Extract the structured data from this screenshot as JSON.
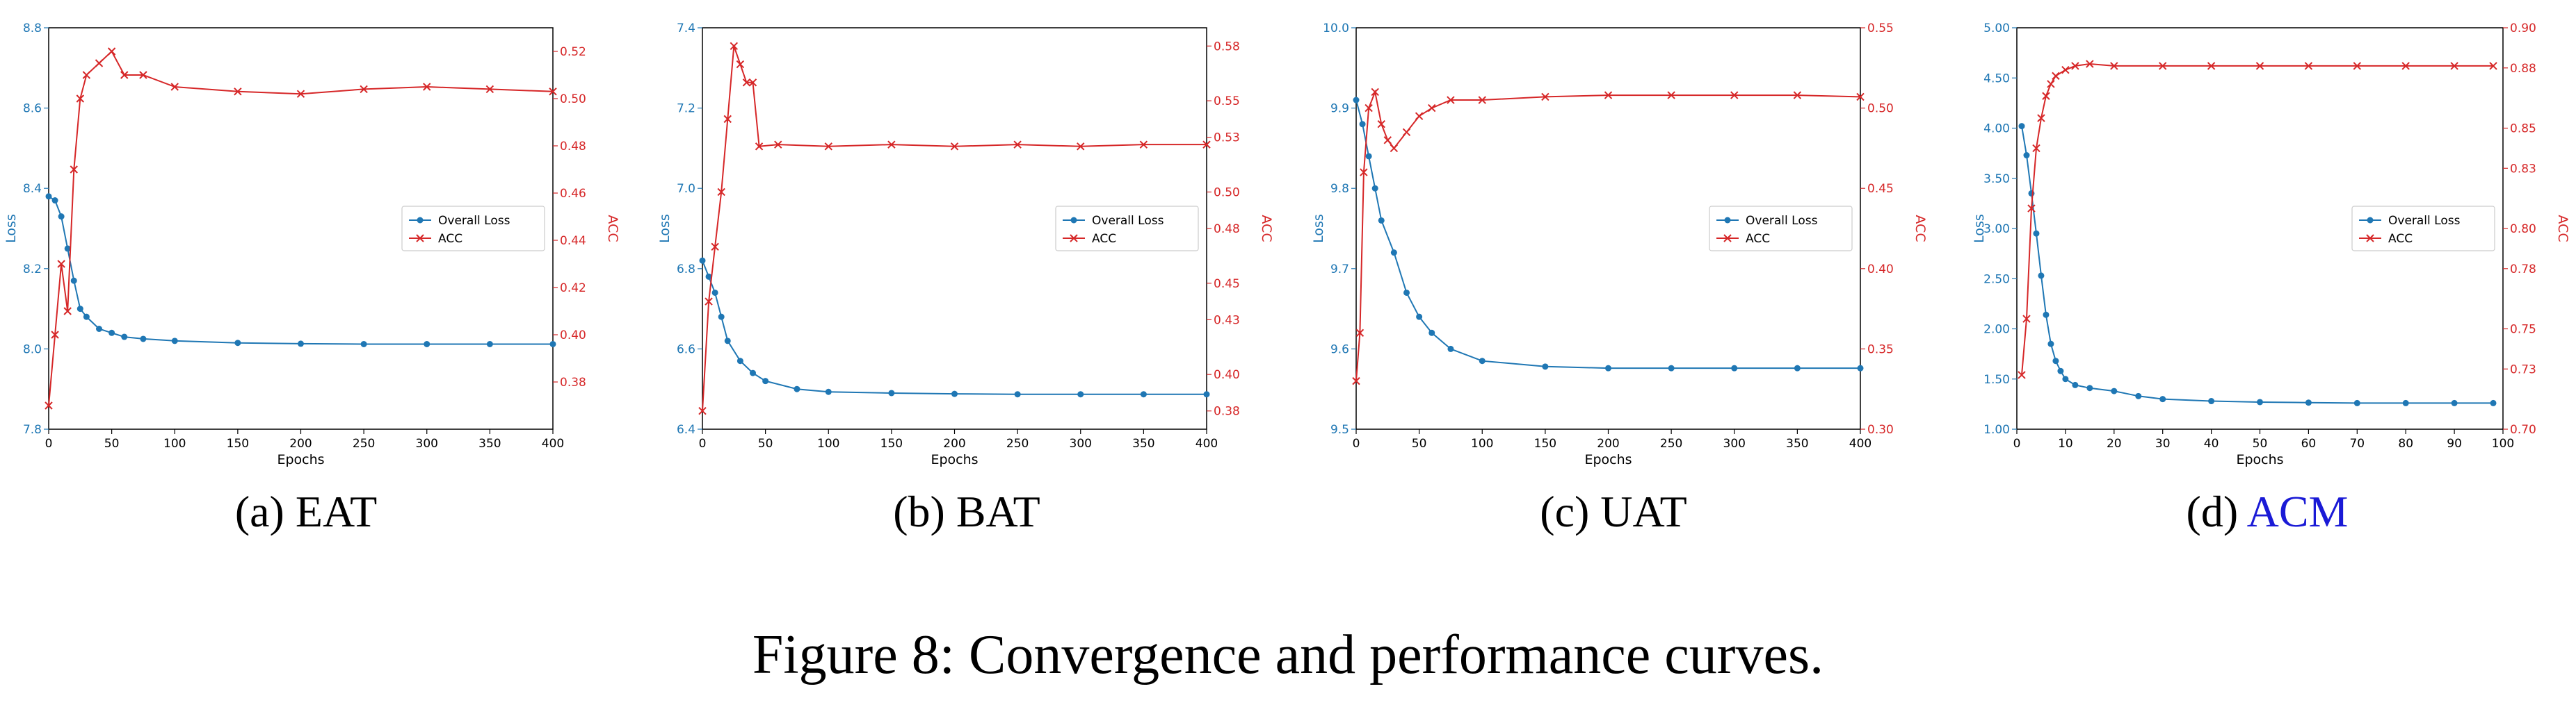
{
  "colors": {
    "loss": "#1f77b4",
    "acc": "#d62728",
    "ref_link": "#1a1ad6"
  },
  "figure": {
    "caption": "Figure 8: Convergence and performance curves."
  },
  "chart_data": [
    {
      "type": "line",
      "sublabel": "(a)",
      "name": "EAT",
      "xlabel": "Epochs",
      "ylabel_left": "Loss",
      "ylabel_right": "ACC",
      "xlim": [
        0,
        400
      ],
      "ylim_left": [
        7.8,
        8.8
      ],
      "ylim_right": [
        0.36,
        0.53
      ],
      "xticks": [
        0,
        50,
        100,
        150,
        200,
        250,
        300,
        350,
        400
      ],
      "yticks_left": [
        7.8,
        8.0,
        8.2,
        8.4,
        8.6,
        8.8
      ],
      "yticks_right": [
        0.38,
        0.4,
        0.42,
        0.44,
        0.46,
        0.48,
        0.5,
        0.52
      ],
      "left_decimals": 1,
      "right_decimals": 2,
      "legend": {
        "position": "center-right",
        "entries": [
          "Overall Loss",
          "ACC"
        ]
      },
      "series": [
        {
          "name": "Overall Loss",
          "axis": "left",
          "x": [
            0,
            5,
            10,
            15,
            20,
            25,
            30,
            40,
            50,
            60,
            75,
            100,
            150,
            200,
            250,
            300,
            350,
            400
          ],
          "y": [
            8.38,
            8.37,
            8.33,
            8.25,
            8.17,
            8.1,
            8.08,
            8.05,
            8.04,
            8.03,
            8.025,
            8.02,
            8.015,
            8.013,
            8.012,
            8.012,
            8.012,
            8.012
          ]
        },
        {
          "name": "ACC",
          "axis": "right",
          "x": [
            0,
            5,
            10,
            15,
            20,
            25,
            30,
            40,
            50,
            60,
            75,
            100,
            150,
            200,
            250,
            300,
            350,
            400
          ],
          "y": [
            0.37,
            0.4,
            0.43,
            0.41,
            0.47,
            0.5,
            0.51,
            0.515,
            0.52,
            0.51,
            0.51,
            0.505,
            0.503,
            0.502,
            0.504,
            0.505,
            0.504,
            0.503
          ]
        }
      ]
    },
    {
      "type": "line",
      "sublabel": "(b)",
      "name": "BAT",
      "xlabel": "Epochs",
      "ylabel_left": "Loss",
      "ylabel_right": "ACC",
      "xlim": [
        0,
        400
      ],
      "ylim_left": [
        6.4,
        7.4
      ],
      "ylim_right": [
        0.37,
        0.59
      ],
      "xticks": [
        0,
        50,
        100,
        150,
        200,
        250,
        300,
        350,
        400
      ],
      "yticks_left": [
        6.4,
        6.6,
        6.8,
        7.0,
        7.2,
        7.4
      ],
      "yticks_right": [
        0.38,
        0.4,
        0.43,
        0.45,
        0.48,
        0.5,
        0.53,
        0.55,
        0.58
      ],
      "left_decimals": 1,
      "right_decimals": 2,
      "legend": {
        "position": "center-right",
        "entries": [
          "Overall Loss",
          "ACC"
        ]
      },
      "series": [
        {
          "name": "Overall Loss",
          "axis": "left",
          "x": [
            0,
            5,
            10,
            15,
            20,
            30,
            40,
            50,
            75,
            100,
            150,
            200,
            250,
            300,
            350,
            400
          ],
          "y": [
            6.82,
            6.78,
            6.74,
            6.68,
            6.62,
            6.57,
            6.54,
            6.52,
            6.5,
            6.493,
            6.49,
            6.488,
            6.487,
            6.487,
            6.487,
            6.487
          ]
        },
        {
          "name": "ACC",
          "axis": "right",
          "x": [
            0,
            5,
            10,
            15,
            20,
            25,
            30,
            35,
            40,
            45,
            60,
            100,
            150,
            200,
            250,
            300,
            350,
            400
          ],
          "y": [
            0.38,
            0.44,
            0.47,
            0.5,
            0.54,
            0.58,
            0.57,
            0.56,
            0.56,
            0.525,
            0.526,
            0.525,
            0.526,
            0.525,
            0.526,
            0.525,
            0.526,
            0.526
          ]
        }
      ]
    },
    {
      "type": "line",
      "sublabel": "(c)",
      "name": "UAT",
      "xlabel": "Epochs",
      "ylabel_left": "Loss",
      "ylabel_right": "ACC",
      "xlim": [
        0,
        400
      ],
      "ylim_left": [
        9.5,
        10.0
      ],
      "ylim_right": [
        0.3,
        0.55
      ],
      "xticks": [
        0,
        50,
        100,
        150,
        200,
        250,
        300,
        350,
        400
      ],
      "yticks_left": [
        9.5,
        9.6,
        9.7,
        9.8,
        9.9,
        10.0
      ],
      "yticks_right": [
        0.3,
        0.35,
        0.4,
        0.45,
        0.5,
        0.55
      ],
      "left_decimals": 1,
      "right_decimals": 2,
      "legend": {
        "position": "center-right",
        "entries": [
          "Overall Loss",
          "ACC"
        ]
      },
      "series": [
        {
          "name": "Overall Loss",
          "axis": "left",
          "x": [
            0,
            5,
            10,
            15,
            20,
            30,
            40,
            50,
            60,
            75,
            100,
            150,
            200,
            250,
            300,
            350,
            400
          ],
          "y": [
            9.91,
            9.88,
            9.84,
            9.8,
            9.76,
            9.72,
            9.67,
            9.64,
            9.62,
            9.6,
            9.585,
            9.578,
            9.576,
            9.576,
            9.576,
            9.576,
            9.576
          ]
        },
        {
          "name": "ACC",
          "axis": "right",
          "x": [
            0,
            3,
            6,
            10,
            15,
            20,
            25,
            30,
            40,
            50,
            60,
            75,
            100,
            150,
            200,
            250,
            300,
            350,
            400
          ],
          "y": [
            0.33,
            0.36,
            0.46,
            0.5,
            0.51,
            0.49,
            0.48,
            0.475,
            0.485,
            0.495,
            0.5,
            0.505,
            0.505,
            0.507,
            0.508,
            0.508,
            0.508,
            0.508,
            0.507
          ]
        }
      ]
    },
    {
      "type": "line",
      "sublabel": "(d)",
      "name": "ACM",
      "xlabel": "Epochs",
      "ylabel_left": "Loss",
      "ylabel_right": "ACC",
      "xlim": [
        0,
        100
      ],
      "ylim_left": [
        1.0,
        5.0
      ],
      "ylim_right": [
        0.7,
        0.9
      ],
      "xticks": [
        0,
        10,
        20,
        30,
        40,
        50,
        60,
        70,
        80,
        90,
        100
      ],
      "yticks_left": [
        1.0,
        1.5,
        2.0,
        2.5,
        3.0,
        3.5,
        4.0,
        4.5,
        5.0
      ],
      "yticks_right": [
        0.7,
        0.73,
        0.75,
        0.78,
        0.8,
        0.83,
        0.85,
        0.88,
        0.9
      ],
      "left_decimals": 2,
      "right_decimals": 2,
      "legend": {
        "position": "center-right",
        "entries": [
          "Overall Loss",
          "ACC"
        ]
      },
      "series": [
        {
          "name": "Overall Loss",
          "axis": "left",
          "x": [
            1,
            2,
            3,
            4,
            5,
            6,
            7,
            8,
            9,
            10,
            12,
            15,
            20,
            25,
            30,
            40,
            50,
            60,
            70,
            80,
            90,
            98
          ],
          "y": [
            4.02,
            3.73,
            3.35,
            2.95,
            2.53,
            2.14,
            1.85,
            1.68,
            1.58,
            1.5,
            1.44,
            1.41,
            1.38,
            1.33,
            1.3,
            1.28,
            1.27,
            1.265,
            1.26,
            1.26,
            1.26,
            1.26
          ]
        },
        {
          "name": "ACC",
          "axis": "right",
          "x": [
            1,
            2,
            3,
            4,
            5,
            6,
            7,
            8,
            10,
            12,
            15,
            20,
            30,
            40,
            50,
            60,
            70,
            80,
            90,
            98
          ],
          "y": [
            0.727,
            0.755,
            0.81,
            0.84,
            0.855,
            0.866,
            0.872,
            0.876,
            0.879,
            0.881,
            0.882,
            0.881,
            0.881,
            0.881,
            0.881,
            0.881,
            0.881,
            0.881,
            0.881,
            0.881
          ]
        }
      ]
    }
  ]
}
